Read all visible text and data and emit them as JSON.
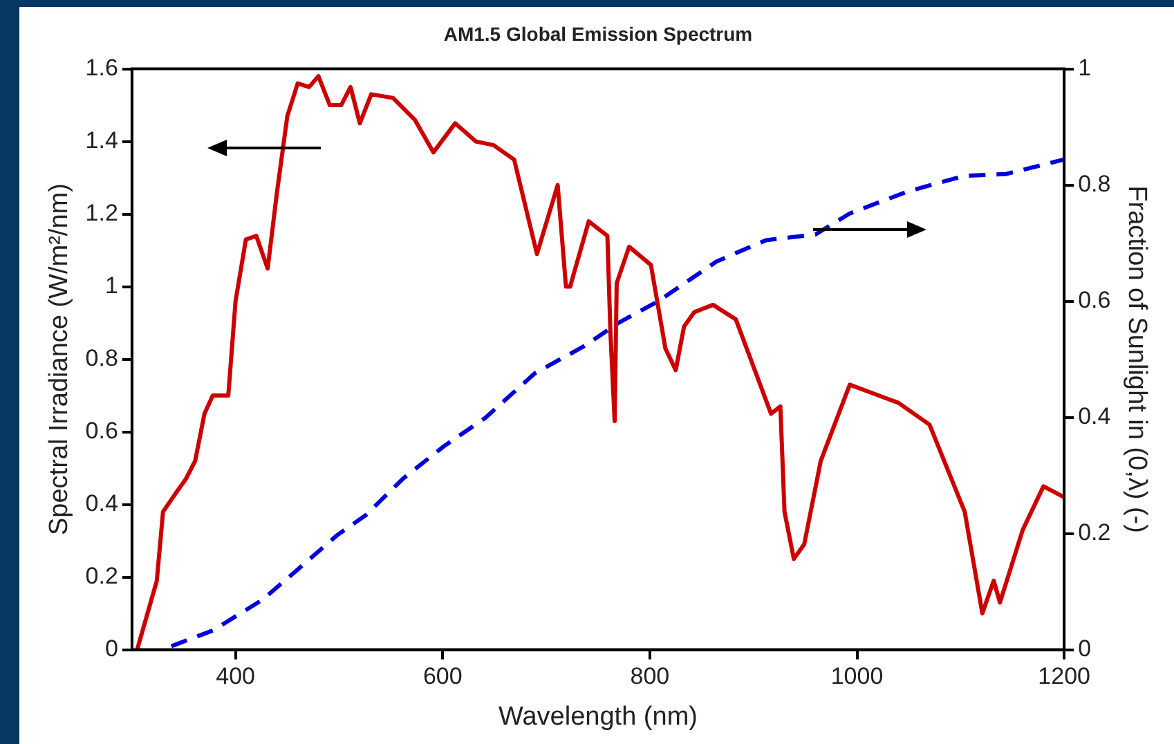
{
  "chart_data": {
    "type": "line",
    "title": "AM1.5 Global Emission Spectrum",
    "xlabel": "Wavelength (nm)",
    "ylabel": "Spectral Irradiance (W/m²/nm)",
    "y2label": "Fraction of Sunlight in (0,λ) (-)",
    "xlim": [
      300,
      1200
    ],
    "xticks": [
      400,
      600,
      800,
      1000,
      1200
    ],
    "ylim": [
      0,
      1.6
    ],
    "yticks": [
      0,
      0.2,
      0.4,
      0.6,
      0.8,
      1,
      1.2,
      1.4,
      1.6
    ],
    "y2lim": [
      0,
      1
    ],
    "y2ticks": [
      0,
      0.2,
      0.4,
      0.6,
      0.8,
      1
    ],
    "grid": false,
    "legend": false,
    "marker": "none",
    "series": [
      {
        "color": "#cc0000",
        "line_style": "solid",
        "x": [
          305,
          324,
          330,
          342,
          352,
          361,
          370,
          378,
          393,
          400,
          410,
          420,
          431,
          440,
          450,
          460,
          471,
          480,
          491,
          502,
          511,
          520,
          531,
          552,
          573,
          591,
          612,
          632,
          649,
          669,
          691,
          711,
          719,
          723,
          741,
          759,
          762,
          766,
          768,
          780,
          801,
          815,
          825,
          833,
          843,
          861,
          883,
          917,
          926,
          930,
          939,
          949,
          965,
          993,
          1040,
          1070,
          1104,
          1121,
          1132,
          1138,
          1160,
          1180,
          1200
        ],
        "values": [
          0,
          0.19,
          0.38,
          0.43,
          0.47,
          0.52,
          0.65,
          0.7,
          0.7,
          0.96,
          1.13,
          1.14,
          1.05,
          1.26,
          1.47,
          1.56,
          1.55,
          1.58,
          1.5,
          1.5,
          1.55,
          1.45,
          1.53,
          1.52,
          1.46,
          1.37,
          1.45,
          1.4,
          1.39,
          1.35,
          1.09,
          1.28,
          1,
          1,
          1.18,
          1.14,
          0.87,
          0.63,
          1.01,
          1.11,
          1.06,
          0.83,
          0.77,
          0.89,
          0.93,
          0.95,
          0.91,
          0.65,
          0.67,
          0.38,
          0.25,
          0.29,
          0.52,
          0.73,
          0.68,
          0.62,
          0.38,
          0.1,
          0.19,
          0.13,
          0.33,
          0.45,
          0.42
        ]
      },
      {
        "color": "#0000dd",
        "line_style": "dashed",
        "axis": "y2",
        "x": [
          338,
          378,
          426,
          458,
          498,
          526,
          562,
          601,
          641,
          689,
          738,
          769,
          809,
          864,
          912,
          960,
          993,
          1049,
          1104,
          1144,
          1200
        ],
        "values": [
          0.006,
          0.033,
          0.086,
          0.135,
          0.197,
          0.232,
          0.295,
          0.35,
          0.399,
          0.476,
          0.524,
          0.562,
          0.601,
          0.668,
          0.705,
          0.715,
          0.751,
          0.789,
          0.816,
          0.819,
          0.844
        ]
      }
    ]
  }
}
